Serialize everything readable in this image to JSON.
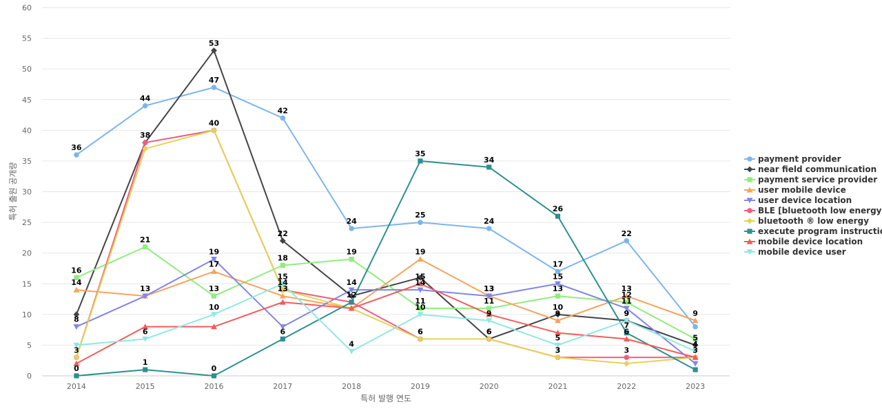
{
  "chart_data": {
    "type": "line",
    "title": "",
    "xlabel": "특허 발행 연도",
    "ylabel": "특허 출원 공개량",
    "x": [
      "2014",
      "2015",
      "2016",
      "2017",
      "2018",
      "2019",
      "2020",
      "2021",
      "2022",
      "2023"
    ],
    "ylim": [
      0,
      60
    ],
    "yticks": [
      0,
      5,
      10,
      15,
      20,
      25,
      30,
      35,
      40,
      45,
      50,
      55,
      60
    ],
    "grid": true,
    "legend_position": "right",
    "series": [
      {
        "name": "payment provider",
        "color": "#7cb5ec",
        "marker": "circle",
        "values": [
          36,
          44,
          47,
          42,
          24,
          25,
          24,
          17,
          22,
          8
        ]
      },
      {
        "name": "near field communication",
        "color": "#434348",
        "marker": "diamond",
        "values": [
          10,
          38,
          53,
          22,
          13,
          16,
          6,
          10,
          9,
          5
        ]
      },
      {
        "name": "payment service provider",
        "color": "#90ed7d",
        "marker": "square",
        "values": [
          16,
          21,
          13,
          18,
          19,
          11,
          11,
          13,
          12,
          6
        ]
      },
      {
        "name": "user mobile device",
        "color": "#f7a35c",
        "marker": "triangle",
        "values": [
          14,
          13,
          17,
          13,
          11,
          19,
          13,
          9,
          13,
          9
        ]
      },
      {
        "name": "user device location",
        "color": "#8085e9",
        "marker": "triangle-down",
        "values": [
          8,
          13,
          19,
          8,
          14,
          14,
          13,
          15,
          11,
          2
        ]
      },
      {
        "name": "BLE [bluetooth low energy]",
        "color": "#f15c80",
        "marker": "circle",
        "values": [
          3,
          38,
          40,
          14,
          12,
          6,
          6,
          3,
          3,
          3
        ]
      },
      {
        "name": "bluetooth ® low energy",
        "color": "#e4d354",
        "marker": "diamond",
        "values": [
          3,
          37,
          40,
          14,
          11,
          6,
          6,
          3,
          2,
          3
        ]
      },
      {
        "name": "execute program instruction",
        "color": "#2b908f",
        "marker": "square",
        "values": [
          0,
          1,
          0,
          6,
          12,
          35,
          34,
          26,
          7,
          1
        ]
      },
      {
        "name": "mobile device location",
        "color": "#f45b5b",
        "marker": "triangle",
        "values": [
          2,
          8,
          8,
          12,
          11,
          15,
          10,
          7,
          6,
          3
        ]
      },
      {
        "name": "mobile device user",
        "color": "#91e8e1",
        "marker": "triangle-down",
        "values": [
          5,
          6,
          10,
          15,
          4,
          10,
          9,
          5,
          9,
          4
        ]
      }
    ],
    "data_labels": [
      {
        "series": 0,
        "points": [
          0,
          1,
          2,
          3,
          4,
          5,
          6,
          7,
          8
        ]
      },
      {
        "series": 1,
        "points": [
          2,
          3,
          6,
          7,
          8,
          9
        ]
      },
      {
        "series": 2,
        "points": [
          0,
          1,
          2,
          3,
          4,
          5,
          6,
          7,
          8
        ]
      },
      {
        "series": 3,
        "points": [
          0,
          1,
          2,
          3,
          5,
          6,
          7,
          8,
          9
        ]
      },
      {
        "series": 4,
        "points": [
          0,
          2,
          4,
          5,
          6,
          7,
          8
        ]
      },
      {
        "series": 5,
        "points": [
          1,
          2,
          3,
          4,
          5,
          6,
          7,
          8
        ]
      },
      {
        "series": 6,
        "points": [
          0,
          5,
          6,
          7,
          9
        ]
      },
      {
        "series": 7,
        "points": [
          0,
          1,
          2,
          3,
          5,
          6,
          7,
          8
        ]
      },
      {
        "series": 8,
        "points": [
          5,
          8
        ]
      },
      {
        "series": 9,
        "points": [
          1,
          2,
          3,
          4,
          5,
          6,
          7,
          8,
          9
        ]
      }
    ]
  }
}
